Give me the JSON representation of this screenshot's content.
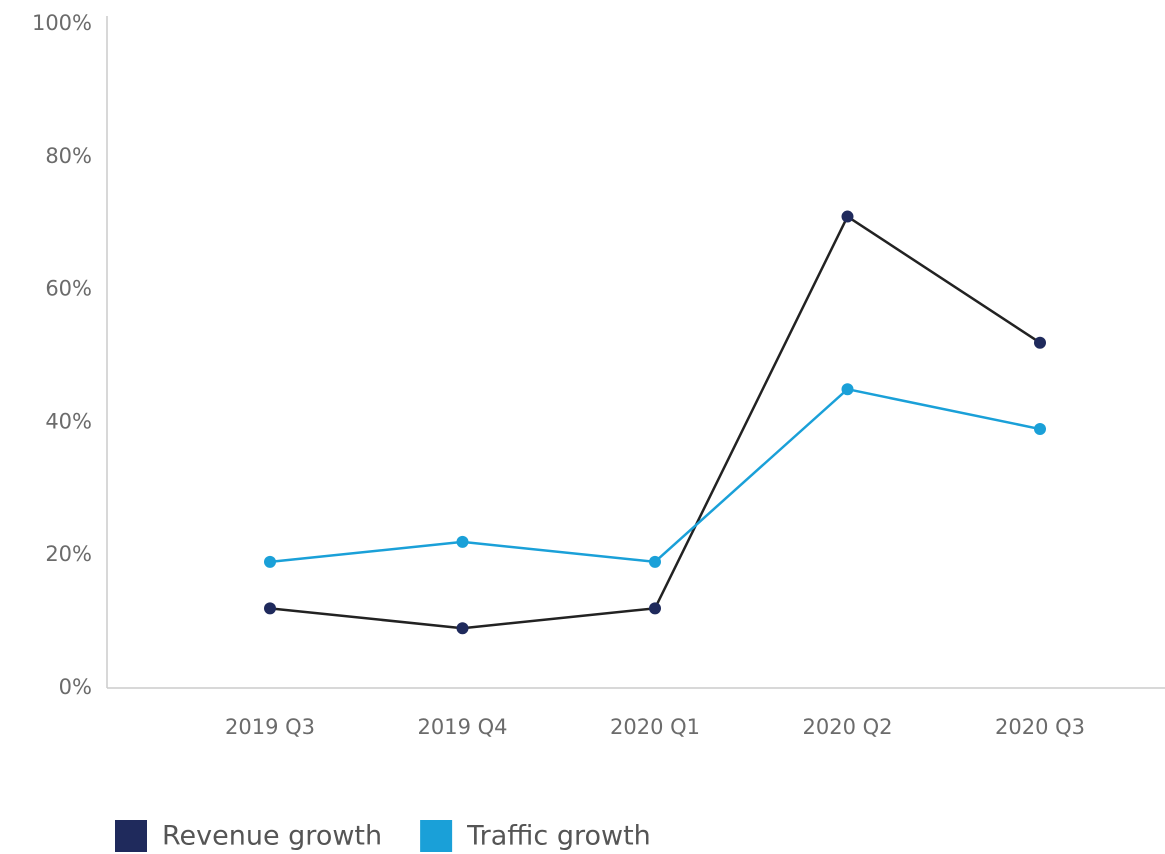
{
  "chart_data": {
    "type": "line",
    "categories": [
      "2019 Q3",
      "2019 Q4",
      "2020 Q1",
      "2020 Q2",
      "2020 Q3"
    ],
    "series": [
      {
        "name": "Revenue growth",
        "color": "#1f2a5c",
        "values": [
          12,
          9,
          12,
          71,
          52
        ]
      },
      {
        "name": "Traffic growth",
        "color": "#1aa0d8",
        "values": [
          19,
          22,
          19,
          45,
          39
        ]
      }
    ],
    "ylim": [
      0,
      100
    ],
    "yticks": [
      {
        "value": 0,
        "label": "0%"
      },
      {
        "value": 20,
        "label": "20%"
      },
      {
        "value": 40,
        "label": "40%"
      },
      {
        "value": 60,
        "label": "60%"
      },
      {
        "value": 80,
        "label": "80%"
      },
      {
        "value": 100,
        "label": "100%"
      }
    ],
    "grid": false,
    "legend": "bottom"
  }
}
